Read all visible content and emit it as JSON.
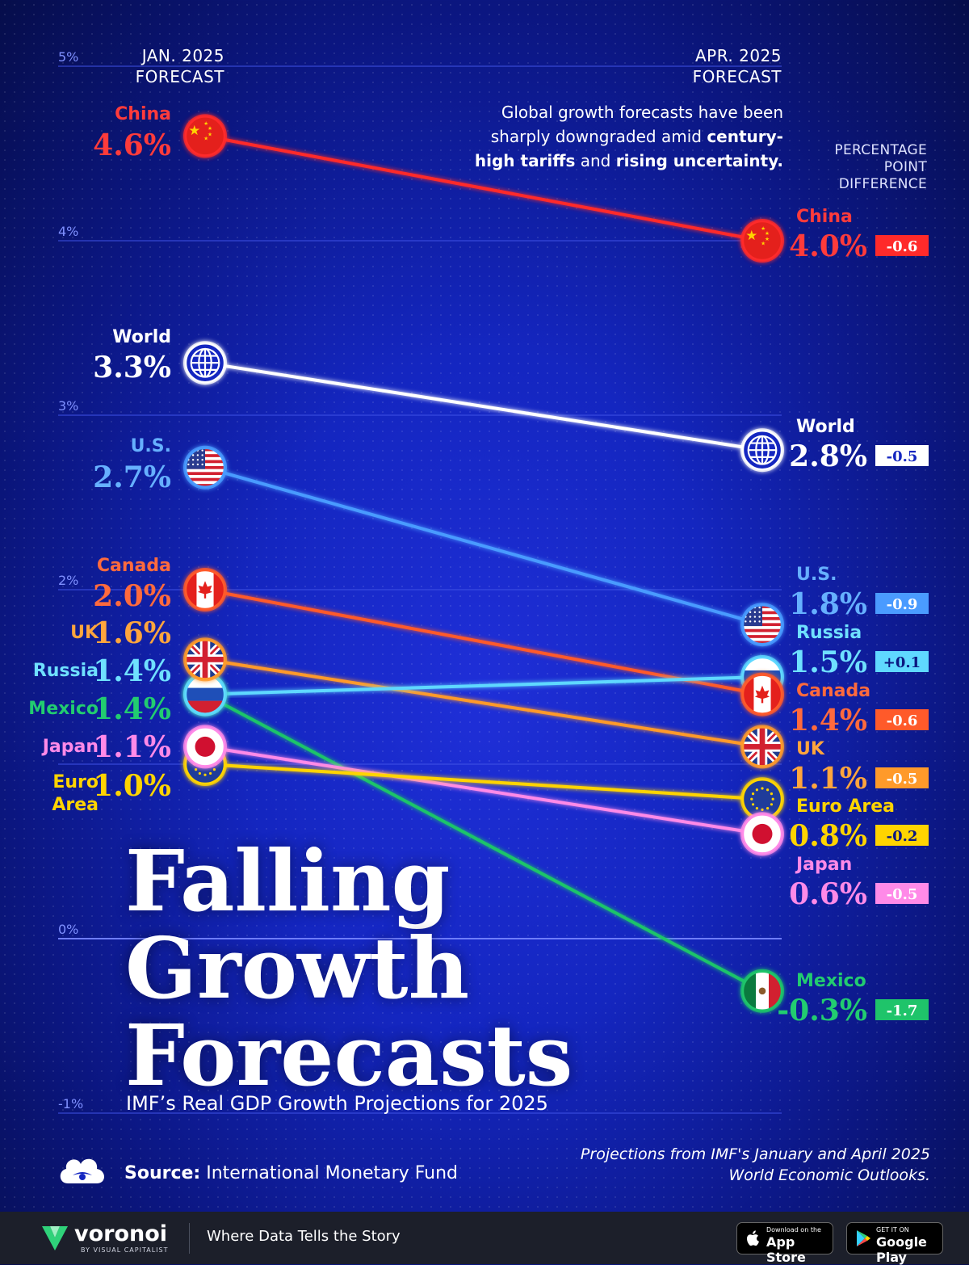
{
  "header": {
    "left_col_line1": "JAN. 2025",
    "left_col_line2": "FORECAST",
    "right_col_line1": "APR. 2025",
    "right_col_line2": "FORECAST",
    "intro_part1": "Global growth forecasts have been sharply downgraded amid ",
    "intro_bold1": "century-high tariffs",
    "intro_part2": " and ",
    "intro_bold2": "rising uncertainty.",
    "diff_label_line1": "PERCENTAGE",
    "diff_label_line2": "POINT",
    "diff_label_line3": "DIFFERENCE"
  },
  "title": {
    "line1": "Falling",
    "line2": "Growth",
    "line3": "Forecasts",
    "subtitle": "IMF’s Real GDP Growth Projections for 2025"
  },
  "source": {
    "label": "Source:",
    "text": "International Monetary Fund",
    "note_line1": "Projections from IMF's January and April 2025",
    "note_line2": "World Economic Outlooks."
  },
  "footer": {
    "brand": "voronoi",
    "brand_sub": "BY VISUAL CAPITALIST",
    "tagline": "Where Data Tells the Story",
    "appstore_small": "Download on the",
    "appstore_big": "App Store",
    "googleplay_small": "GET IT ON",
    "googleplay_big": "Google Play"
  },
  "chart_data": {
    "type": "line",
    "x": [
      "JAN. 2025 FORECAST",
      "APR. 2025 FORECAST"
    ],
    "ylim": [
      -1,
      5
    ],
    "yticks": [
      {
        "value": 5,
        "label": "5%"
      },
      {
        "value": 4,
        "label": "4%"
      },
      {
        "value": 3,
        "label": "3%"
      },
      {
        "value": 2,
        "label": "2%"
      },
      {
        "value": 1,
        "label": ""
      },
      {
        "value": 0,
        "label": "0%"
      },
      {
        "value": -1,
        "label": "-1%"
      }
    ],
    "series": [
      {
        "name": "China",
        "jan": 4.6,
        "apr": 4.0,
        "jan_label": "4.6%",
        "apr_label": "4.0%",
        "diff": "-0.6",
        "color": "#ff2a2a",
        "text_color": "#ff3b3b",
        "flag": "china"
      },
      {
        "name": "World",
        "jan": 3.3,
        "apr": 2.8,
        "jan_label": "3.3%",
        "apr_label": "2.8%",
        "diff": "-0.5",
        "color": "#ffffff",
        "text_color": "#ffffff",
        "flag": "world"
      },
      {
        "name": "U.S.",
        "jan": 2.7,
        "apr": 1.8,
        "jan_label": "2.7%",
        "apr_label": "1.8%",
        "diff": "-0.9",
        "color": "#4a9bff",
        "text_color": "#66b0ff",
        "flag": "us"
      },
      {
        "name": "Canada",
        "jan": 2.0,
        "apr": 1.4,
        "jan_label": "2.0%",
        "apr_label": "1.4%",
        "diff": "-0.6",
        "color": "#ff5a2a",
        "text_color": "#ff6a3d",
        "flag": "canada"
      },
      {
        "name": "UK",
        "jan": 1.6,
        "apr": 1.1,
        "jan_label": "1.6%",
        "apr_label": "1.1%",
        "diff": "-0.5",
        "color": "#ff9a2a",
        "text_color": "#ffa53d",
        "flag": "uk"
      },
      {
        "name": "Russia",
        "jan": 1.4,
        "apr": 1.5,
        "jan_label": "1.4%",
        "apr_label": "1.5%",
        "diff": "+0.1",
        "color": "#5fd8ff",
        "text_color": "#6fe0ff",
        "flag": "russia"
      },
      {
        "name": "Mexico",
        "jan": 1.4,
        "apr": -0.3,
        "jan_label": "1.4%",
        "apr_label": "-0.3%",
        "diff": "-1.7",
        "color": "#1fc46a",
        "text_color": "#22cc70",
        "flag": "mexico"
      },
      {
        "name": "Japan",
        "jan": 1.1,
        "apr": 0.6,
        "jan_label": "1.1%",
        "apr_label": "0.6%",
        "diff": "-0.5",
        "color": "#ff8ae8",
        "text_color": "#ff8ae8",
        "flag": "japan"
      },
      {
        "name": "Euro Area",
        "jan": 1.0,
        "apr": 0.8,
        "jan_label": "1.0%",
        "apr_label": "0.8%",
        "diff": "-0.2",
        "color": "#ffd400",
        "text_color": "#ffd400",
        "flag": "eu"
      }
    ]
  }
}
